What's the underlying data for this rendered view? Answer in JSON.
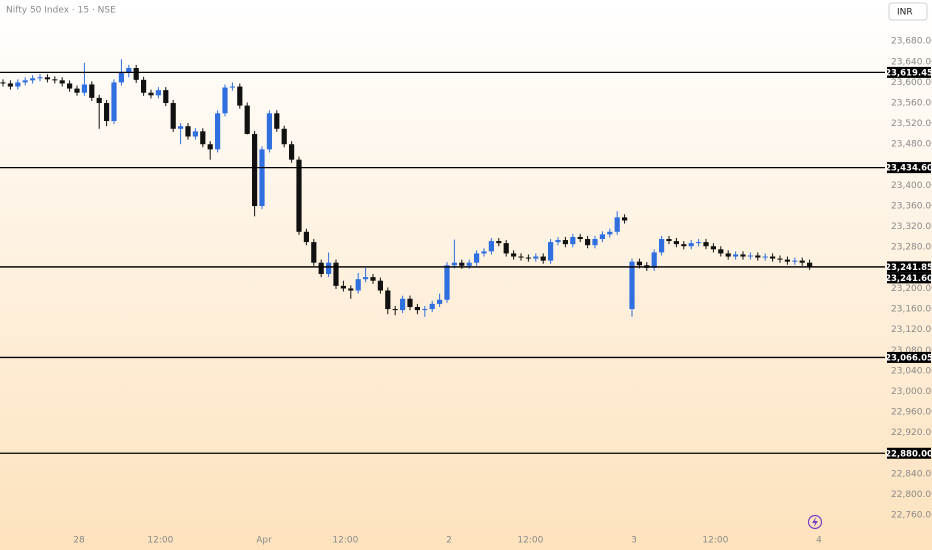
{
  "chart_data": {
    "type": "candlestick",
    "title": "Nifty 50 Index · 15 · NSE",
    "currency": "INR",
    "up_color": "#2f6fe0",
    "down_color": "#111111",
    "categories": [
      null,
      null,
      null,
      null,
      null,
      null,
      null,
      null,
      null,
      null,
      "28",
      null,
      null,
      null,
      null,
      null,
      null,
      null,
      null,
      null,
      null,
      "12:00",
      null,
      null,
      null,
      null,
      null,
      null,
      null,
      null,
      null,
      null,
      null,
      null,
      null,
      "Apr",
      null,
      null,
      null,
      null,
      null,
      null,
      null,
      null,
      null,
      null,
      "12:00",
      null,
      null,
      null,
      null,
      null,
      null,
      null,
      null,
      null,
      null,
      null,
      null,
      null,
      "2",
      null,
      null,
      null,
      null,
      null,
      null,
      null,
      null,
      null,
      null,
      "12:00",
      null,
      null,
      null,
      null,
      null,
      null,
      null,
      null,
      null,
      null,
      null,
      null,
      null,
      "3",
      null,
      null,
      null,
      null,
      null,
      null,
      null,
      null,
      null,
      null,
      "12:00",
      null,
      null,
      null,
      null,
      null,
      null,
      null,
      null,
      null,
      null,
      null,
      null,
      null,
      "4"
    ],
    "ohlc": [
      [
        23600,
        23606,
        23592,
        23598
      ],
      [
        23598,
        23604,
        23586,
        23592
      ],
      [
        23592,
        23606,
        23586,
        23600
      ],
      [
        23600,
        23610,
        23594,
        23604
      ],
      [
        23604,
        23614,
        23598,
        23608
      ],
      [
        23608,
        23616,
        23602,
        23610
      ],
      [
        23610,
        23616,
        23600,
        23606
      ],
      [
        23606,
        23612,
        23598,
        23604
      ],
      [
        23604,
        23610,
        23592,
        23598
      ],
      [
        23598,
        23604,
        23582,
        23588
      ],
      [
        23588,
        23594,
        23574,
        23580
      ],
      [
        23580,
        23638,
        23574,
        23596
      ],
      [
        23596,
        23602,
        23564,
        23570
      ],
      [
        23570,
        23576,
        23510,
        23560
      ],
      [
        23560,
        23566,
        23515,
        23525
      ],
      [
        23525,
        23606,
        23519,
        23600
      ],
      [
        23600,
        23645,
        23594,
        23620
      ],
      [
        23620,
        23634,
        23610,
        23628
      ],
      [
        23628,
        23634,
        23599,
        23605
      ],
      [
        23605,
        23611,
        23574,
        23580
      ],
      [
        23580,
        23586,
        23569,
        23575
      ],
      [
        23575,
        23591,
        23569,
        23585
      ],
      [
        23585,
        23591,
        23554,
        23560
      ],
      [
        23560,
        23566,
        23504,
        23510
      ],
      [
        23510,
        23521,
        23480,
        23515
      ],
      [
        23515,
        23521,
        23489,
        23495
      ],
      [
        23495,
        23511,
        23489,
        23505
      ],
      [
        23505,
        23511,
        23474,
        23480
      ],
      [
        23480,
        23486,
        23450,
        23470
      ],
      [
        23470,
        23546,
        23464,
        23540
      ],
      [
        23540,
        23596,
        23534,
        23590
      ],
      [
        23590,
        23600,
        23584,
        23592
      ],
      [
        23592,
        23598,
        23549,
        23555
      ],
      [
        23555,
        23561,
        23499,
        23500
      ],
      [
        23500,
        23506,
        23340,
        23360
      ],
      [
        23360,
        23476,
        23354,
        23470
      ],
      [
        23470,
        23546,
        23464,
        23540
      ],
      [
        23540,
        23546,
        23504,
        23510
      ],
      [
        23510,
        23516,
        23474,
        23480
      ],
      [
        23480,
        23486,
        23444,
        23450
      ],
      [
        23450,
        23456,
        23304,
        23310
      ],
      [
        23310,
        23316,
        23284,
        23290
      ],
      [
        23290,
        23296,
        23244,
        23250
      ],
      [
        23250,
        23256,
        23222,
        23228
      ],
      [
        23228,
        23270,
        23222,
        23250
      ],
      [
        23250,
        23256,
        23199,
        23205
      ],
      [
        23205,
        23215,
        23194,
        23200
      ],
      [
        23200,
        23206,
        23180,
        23196
      ],
      [
        23196,
        23230,
        23190,
        23218
      ],
      [
        23218,
        23240,
        23212,
        23222
      ],
      [
        23222,
        23228,
        23209,
        23215
      ],
      [
        23215,
        23221,
        23190,
        23196
      ],
      [
        23196,
        23202,
        23150,
        23160
      ],
      [
        23160,
        23166,
        23148,
        23158
      ],
      [
        23158,
        23186,
        23152,
        23180
      ],
      [
        23180,
        23186,
        23158,
        23164
      ],
      [
        23164,
        23170,
        23150,
        23158
      ],
      [
        23158,
        23166,
        23145,
        23160
      ],
      [
        23160,
        23176,
        23154,
        23170
      ],
      [
        23170,
        23190,
        23164,
        23178
      ],
      [
        23178,
        23251,
        23172,
        23245
      ],
      [
        23245,
        23295,
        23239,
        23250
      ],
      [
        23250,
        23256,
        23238,
        23244
      ],
      [
        23244,
        23256,
        23238,
        23250
      ],
      [
        23250,
        23274,
        23244,
        23268
      ],
      [
        23268,
        23278,
        23262,
        23272
      ],
      [
        23272,
        23298,
        23266,
        23292
      ],
      [
        23292,
        23298,
        23282,
        23288
      ],
      [
        23288,
        23294,
        23262,
        23268
      ],
      [
        23268,
        23274,
        23256,
        23262
      ],
      [
        23262,
        23268,
        23254,
        23260
      ],
      [
        23260,
        23266,
        23252,
        23258
      ],
      [
        23258,
        23268,
        23252,
        23262
      ],
      [
        23262,
        23268,
        23248,
        23254
      ],
      [
        23254,
        23296,
        23248,
        23290
      ],
      [
        23290,
        23300,
        23284,
        23294
      ],
      [
        23294,
        23300,
        23280,
        23286
      ],
      [
        23286,
        23306,
        23280,
        23300
      ],
      [
        23300,
        23306,
        23290,
        23296
      ],
      [
        23296,
        23302,
        23278,
        23284
      ],
      [
        23284,
        23302,
        23278,
        23296
      ],
      [
        23296,
        23311,
        23290,
        23305
      ],
      [
        23305,
        23316,
        23299,
        23310
      ],
      [
        23310,
        23350,
        23304,
        23338
      ],
      [
        23338,
        23344,
        23326,
        23332
      ],
      [
        23160,
        23258,
        23145,
        23252
      ],
      [
        23252,
        23258,
        23239,
        23245
      ],
      [
        23245,
        23251,
        23234,
        23240
      ],
      [
        23240,
        23276,
        23234,
        23270
      ],
      [
        23270,
        23302,
        23264,
        23296
      ],
      [
        23296,
        23302,
        23286,
        23292
      ],
      [
        23292,
        23298,
        23280,
        23286
      ],
      [
        23286,
        23292,
        23276,
        23282
      ],
      [
        23282,
        23294,
        23276,
        23288
      ],
      [
        23288,
        23296,
        23282,
        23290
      ],
      [
        23290,
        23296,
        23276,
        23282
      ],
      [
        23282,
        23288,
        23270,
        23276
      ],
      [
        23276,
        23282,
        23262,
        23268
      ],
      [
        23268,
        23274,
        23256,
        23262
      ],
      [
        23262,
        23272,
        23256,
        23266
      ],
      [
        23266,
        23272,
        23256,
        23262
      ],
      [
        23262,
        23270,
        23256,
        23264
      ],
      [
        23264,
        23270,
        23254,
        23260
      ],
      [
        23260,
        23268,
        23254,
        23262
      ],
      [
        23262,
        23268,
        23252,
        23258
      ],
      [
        23258,
        23264,
        23250,
        23256
      ],
      [
        23256,
        23262,
        23246,
        23252
      ],
      [
        23252,
        23260,
        23246,
        23254
      ],
      [
        23254,
        23260,
        23244,
        23250
      ],
      [
        23250,
        23256,
        23236,
        23242
      ],
      null
    ],
    "levels": [
      {
        "value": 23619.45,
        "label": "23,619.45"
      },
      {
        "value": 23434.6,
        "label": "23,434.60"
      },
      {
        "value": 23241.85,
        "label": "23,241.85"
      },
      {
        "value": 23241.6,
        "label": "23,241.60"
      },
      {
        "value": 23066.05,
        "label": "23,066.05"
      },
      {
        "value": 22880,
        "label": "22,880.00"
      }
    ],
    "ylim": [
      22700,
      23760
    ],
    "yticks": [
      {
        "value": 23680,
        "label": "23,680.00"
      },
      {
        "value": 23640,
        "label": "23,640.00"
      },
      {
        "value": 23600,
        "label": "23,600.00"
      },
      {
        "value": 23560,
        "label": "23,560.00"
      },
      {
        "value": 23520,
        "label": "23,520.00"
      },
      {
        "value": 23480,
        "label": "23,480.00"
      },
      {
        "value": 23400,
        "label": "23,400.00"
      },
      {
        "value": 23360,
        "label": "23,360.00"
      },
      {
        "value": 23320,
        "label": "23,320.00"
      },
      {
        "value": 23280,
        "label": "23,280.00"
      },
      {
        "value": 23200,
        "label": "23,200.00"
      },
      {
        "value": 23160,
        "label": "23,160.00"
      },
      {
        "value": 23120,
        "label": "23,120.00"
      },
      {
        "value": 23080,
        "label": "23,080.00"
      },
      {
        "value": 23040,
        "label": "23,040.00"
      },
      {
        "value": 23000,
        "label": "23,000.00"
      },
      {
        "value": 22960,
        "label": "22,960.00"
      },
      {
        "value": 22920,
        "label": "22,920.00"
      },
      {
        "value": 22840,
        "label": "22,840.00"
      },
      {
        "value": 22800,
        "label": "22,800.00"
      },
      {
        "value": 22760,
        "label": "22,760.00"
      }
    ]
  }
}
